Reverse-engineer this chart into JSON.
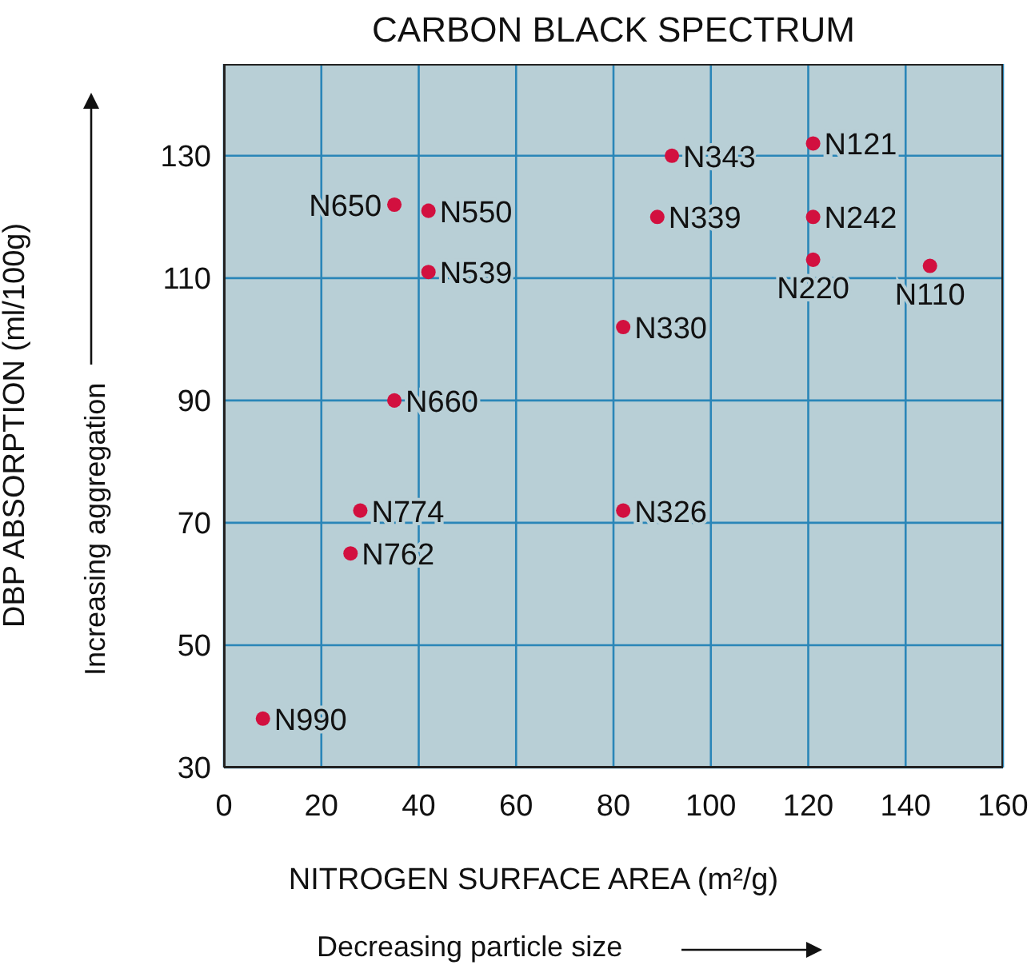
{
  "chart_data": {
    "type": "scatter",
    "title": "CARBON BLACK SPECTRUM",
    "xlabel": "NITROGEN SURFACE AREA (m²/g)",
    "ylabel": "DBP ABSORPTION (ml/100g)",
    "annotations": [
      "Increasing aggregation",
      "Decreasing particle size"
    ],
    "x": [
      8,
      26,
      28,
      35,
      35,
      42,
      42,
      82,
      82,
      92,
      89,
      121,
      121,
      121,
      145
    ],
    "series": [
      {
        "color": "#d2103f",
        "values": [
          38,
          65,
          72,
          90,
          122,
          121,
          111,
          102,
          72,
          130,
          120,
          132,
          120,
          113,
          112
        ],
        "value_labels": [
          "N990",
          "N762",
          "N774",
          "N660",
          "N650",
          "N550",
          "N539",
          "N330",
          "N326",
          "N343",
          "N339",
          "N121",
          "N242",
          "N220",
          "N110"
        ]
      }
    ],
    "xlim": [
      0,
      160
    ],
    "xticks": [
      0,
      20,
      40,
      60,
      80,
      100,
      120,
      140,
      160
    ],
    "ylim": [
      30,
      145
    ],
    "yticks": [
      30,
      50,
      70,
      90,
      110,
      130
    ],
    "grid": true,
    "marker": "circle"
  }
}
